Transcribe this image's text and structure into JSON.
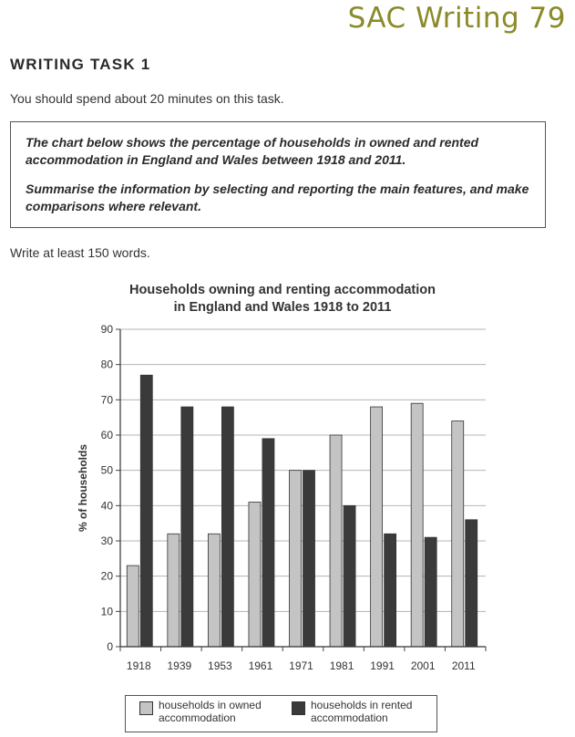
{
  "page": {
    "series_title": "SAC Writing 79",
    "task_heading": "WRITING TASK 1",
    "instruction": "You should spend about 20 minutes on this task.",
    "prompt": {
      "line1": "The chart below shows the percentage of households in owned and rented accommodation in England and Wales between 1918 and 2011.",
      "line2": "Summarise the information by selecting and reporting the main features, and make comparisons where relevant."
    },
    "word_count": "Write at least 150 words."
  },
  "chart_data": {
    "type": "bar",
    "title": "Households owning and renting accommodation in England and Wales 1918 to 2011",
    "title_lines": [
      "Households owning and renting accommodation",
      "in England and Wales 1918 to 2011"
    ],
    "xlabel": "",
    "ylabel": "% of households",
    "ylim": [
      0,
      90
    ],
    "yticks": [
      0,
      10,
      20,
      30,
      40,
      50,
      60,
      70,
      80,
      90
    ],
    "grid": true,
    "legend_position": "bottom",
    "categories": [
      "1918",
      "1939",
      "1953",
      "1961",
      "1971",
      "1981",
      "1991",
      "2001",
      "2011"
    ],
    "series": [
      {
        "name": "households in owned accommodation",
        "color": "#c4c4c4",
        "values": [
          23,
          32,
          32,
          41,
          50,
          60,
          68,
          69,
          64
        ]
      },
      {
        "name": "households in rented accommodation",
        "color": "#3a3a3a",
        "values": [
          77,
          68,
          68,
          59,
          50,
          40,
          32,
          31,
          36
        ]
      }
    ]
  }
}
